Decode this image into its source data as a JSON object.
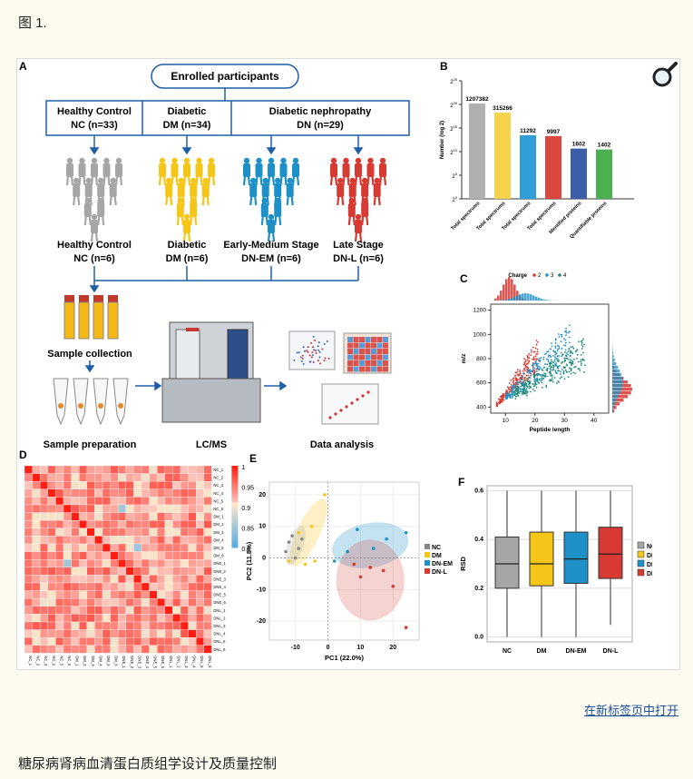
{
  "page": {
    "figure_label": "图 1.",
    "open_link": "在新标签页中打开",
    "caption": "糖尿病肾病血清蛋白质组学设计及质量控制"
  },
  "colors": {
    "NC": "#a6a6a6",
    "DM": "#f5c518",
    "DN_EM": "#1e90c8",
    "DN_L": "#d63a32",
    "green": "#4caf50",
    "blue": "#3a5ea8"
  },
  "panel_a": {
    "letter": "A",
    "enrolled": "Enrolled participants",
    "groups": [
      {
        "line1": "Healthy Control",
        "line2": "NC (n=33)"
      },
      {
        "line1": "Diabetic",
        "line2": "DM (n=34)"
      },
      {
        "line1": "Diabetic nephropathy",
        "line2": "DN (n=29)"
      }
    ],
    "subgroups": [
      {
        "line1": "Healthy Control",
        "line2": "NC (n=6)"
      },
      {
        "line1": "Diabetic",
        "line2": "DM (n=6)"
      },
      {
        "line1": "Early-Medium Stage",
        "line2": "DN-EM (n=6)"
      },
      {
        "line1": "Late Stage",
        "line2": "DN-L (n=6)"
      }
    ],
    "steps": [
      "Sample collection",
      "Sample preparation",
      "LC/MS",
      "Data analysis"
    ]
  },
  "chart_data": [
    {
      "panel": "B",
      "type": "bar",
      "categories": [
        "Total spectrums",
        "Total spectrums",
        "Total spectrums",
        "Total spectrums",
        "Identified proteins",
        "Quantifiable proteins"
      ],
      "values": [
        1207382,
        315266,
        11292,
        9997,
        1602,
        1402
      ],
      "colors": [
        "#b0b0b0",
        "#f5d34a",
        "#2f9fd8",
        "#d9473f",
        "#3a5ea8",
        "#4caf50"
      ],
      "ylabel": "Number (log 2)",
      "yticks": [
        "2^0",
        "2^5",
        "2^10",
        "2^15",
        "2^20",
        "2^25"
      ],
      "scale": "log2",
      "ylim": [
        0,
        25
      ]
    },
    {
      "panel": "C",
      "type": "scatter",
      "xlabel": "Peptide length",
      "ylabel": "m/z",
      "legend_title": "Charge",
      "series": [
        {
          "name": "2"
        },
        {
          "name": "3"
        },
        {
          "name": "4"
        }
      ],
      "xticks": [
        10,
        20,
        30,
        40
      ],
      "yticks": [
        400,
        600,
        800,
        1000,
        1200
      ],
      "xlim": [
        5,
        45
      ],
      "ylim": [
        350,
        1250
      ]
    },
    {
      "panel": "D",
      "type": "heatmap",
      "labels": [
        "NC_1",
        "NC_2",
        "NC_3",
        "NC_4",
        "NC_5",
        "NC_6",
        "DM_1",
        "DM_2",
        "DM_3",
        "DM_4",
        "DM_5",
        "DM_6",
        "DNE_1",
        "DNE_2",
        "DNE_3",
        "DNE_4",
        "DNE_5",
        "DNE_6",
        "DNL_1",
        "DNL_2",
        "DNL_3",
        "DNL_4",
        "DNL_5",
        "DNL_6"
      ],
      "scale_ticks": [
        "1",
        "0.95",
        "0.9",
        "0.85",
        "0.8"
      ],
      "range": [
        0.8,
        1
      ]
    },
    {
      "panel": "E",
      "type": "scatter",
      "xlabel": "PC1 (22.0%)",
      "ylabel": "PC2 (11.8%)",
      "xticks": [
        -10,
        0,
        10,
        20
      ],
      "yticks": [
        -20,
        -10,
        0,
        10,
        20
      ],
      "xlim": [
        -18,
        28
      ],
      "ylim": [
        -26,
        24
      ],
      "legend": [
        "NC",
        "DM",
        "DN-EM",
        "DN-L"
      ],
      "points": [
        {
          "g": "NC",
          "x": -12,
          "y": 5
        },
        {
          "g": "NC",
          "x": -11,
          "y": 7
        },
        {
          "g": "NC",
          "x": -9,
          "y": 3
        },
        {
          "g": "NC",
          "x": -13,
          "y": 2
        },
        {
          "g": "NC",
          "x": -10,
          "y": 0
        },
        {
          "g": "NC",
          "x": -8,
          "y": 6
        },
        {
          "g": "DM",
          "x": -1,
          "y": 20
        },
        {
          "g": "DM",
          "x": -5,
          "y": 10
        },
        {
          "g": "DM",
          "x": -7,
          "y": -2
        },
        {
          "g": "DM",
          "x": -12,
          "y": -1
        },
        {
          "g": "DM",
          "x": -4,
          "y": -1
        },
        {
          "g": "DM",
          "x": -9,
          "y": 8
        },
        {
          "g": "DN-EM",
          "x": 9,
          "y": 9
        },
        {
          "g": "DN-EM",
          "x": 24,
          "y": 8
        },
        {
          "g": "DN-EM",
          "x": 2,
          "y": -1
        },
        {
          "g": "DN-EM",
          "x": 14,
          "y": 3
        },
        {
          "g": "DN-EM",
          "x": 6,
          "y": 2
        },
        {
          "g": "DN-EM",
          "x": 18,
          "y": 6
        },
        {
          "g": "DN-L",
          "x": 13,
          "y": -3
        },
        {
          "g": "DN-L",
          "x": 20,
          "y": -9
        },
        {
          "g": "DN-L",
          "x": 24,
          "y": -22
        },
        {
          "g": "DN-L",
          "x": 10,
          "y": -6
        },
        {
          "g": "DN-L",
          "x": 17,
          "y": -4
        },
        {
          "g": "DN-L",
          "x": 8,
          "y": -2
        }
      ]
    },
    {
      "panel": "F",
      "type": "box",
      "categories": [
        "NC",
        "DM",
        "DN-EM",
        "DN-L"
      ],
      "ylabel": "RSD",
      "yticks": [
        0.0,
        0.2,
        0.4,
        0.6
      ],
      "ylim": [
        -0.02,
        0.62
      ],
      "boxes": [
        {
          "q1": 0.2,
          "median": 0.3,
          "q3": 0.41,
          "min": 0.0,
          "max": 0.6
        },
        {
          "q1": 0.21,
          "median": 0.3,
          "q3": 0.43,
          "min": 0.0,
          "max": 0.6
        },
        {
          "q1": 0.22,
          "median": 0.32,
          "q3": 0.43,
          "min": 0.0,
          "max": 0.6
        },
        {
          "q1": 0.24,
          "median": 0.34,
          "q3": 0.45,
          "min": 0.05,
          "max": 0.6
        }
      ],
      "legend": [
        "NC",
        "DM",
        "DN-EM",
        "DN-L"
      ]
    }
  ]
}
